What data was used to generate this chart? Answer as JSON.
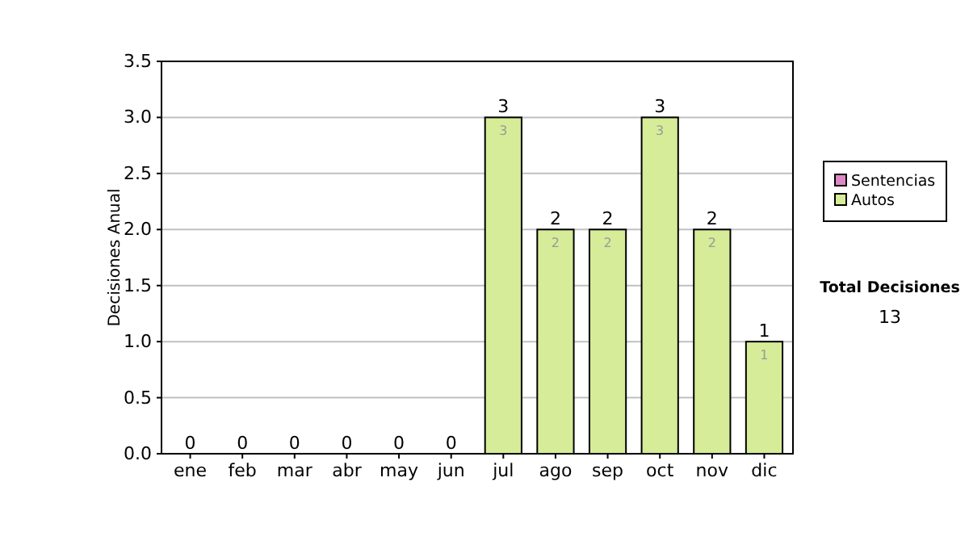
{
  "chart_data": {
    "type": "bar",
    "stacked": true,
    "ylabel": "Decisiones Anual",
    "categories": [
      "ene",
      "feb",
      "mar",
      "abr",
      "may",
      "jun",
      "jul",
      "ago",
      "sep",
      "oct",
      "nov",
      "dic"
    ],
    "series": [
      {
        "name": "Sentencias",
        "color": "#dd88c4",
        "values": [
          0,
          0,
          0,
          0,
          0,
          0,
          0,
          0,
          0,
          0,
          0,
          0
        ]
      },
      {
        "name": "Autos",
        "color": "#d6ec98",
        "values": [
          0,
          0,
          0,
          0,
          0,
          0,
          3,
          2,
          2,
          3,
          2,
          1
        ],
        "value_labels": [
          null,
          null,
          null,
          null,
          null,
          null,
          "3",
          "2",
          "2",
          "3",
          "2",
          "1"
        ]
      }
    ],
    "totals": [
      "0",
      "0",
      "0",
      "0",
      "0",
      "0",
      "3",
      "2",
      "2",
      "3",
      "2",
      "1"
    ],
    "ylim": [
      0,
      3.5
    ],
    "yticks": [
      {
        "value": 0,
        "label": "0.0"
      },
      {
        "value": 0.5,
        "label": "0.5"
      },
      {
        "value": 1,
        "label": "1.0"
      },
      {
        "value": 1.5,
        "label": "1.5"
      },
      {
        "value": 2,
        "label": "2.0"
      },
      {
        "value": 2.5,
        "label": "2.5"
      },
      {
        "value": 3,
        "label": "3.0"
      },
      {
        "value": 3.5,
        "label": "3.5"
      }
    ],
    "grid": "y",
    "legend": "right",
    "annotations": [
      "Total Decisiones",
      "13"
    ]
  }
}
